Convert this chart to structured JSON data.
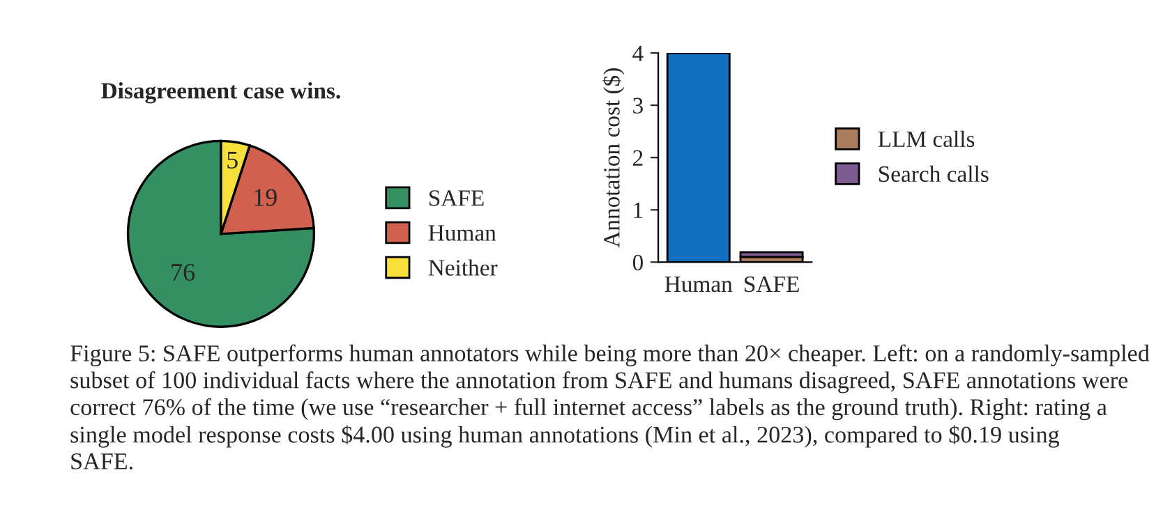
{
  "chart_data": [
    {
      "type": "pie",
      "title": "Disagreement case wins.",
      "categories": [
        "SAFE",
        "Human",
        "Neither"
      ],
      "values": [
        76,
        19,
        5
      ],
      "colors": [
        "#348f62",
        "#d1604e",
        "#f7e03c"
      ],
      "data_labels": true,
      "legend": "right"
    },
    {
      "type": "bar",
      "ylabel": "Annotation cost ($)",
      "categories": [
        "Human",
        "SAFE"
      ],
      "stacked": true,
      "ylim": [
        0,
        4
      ],
      "yticks": [
        0,
        1,
        2,
        3,
        4
      ],
      "legend": "right",
      "series": [
        {
          "color": "#1170c0",
          "values": [
            4,
            null
          ]
        },
        {
          "name": "LLM calls",
          "color": "#a97c5e",
          "values": [
            null,
            0.1
          ]
        },
        {
          "name": "Search calls",
          "color": "#7e5b91",
          "values": [
            null,
            0.09
          ]
        }
      ],
      "annotations": [
        "Figure 5: SAFE outperforms human annotators while being more than 20× cheaper. Left: on a randomly-sampled subset of 100 individual facts where the annotation from SAFE and humans disagreed, SAFE annotations were correct 76% of the time (we use “researcher + full internet access” labels as the ground truth). Right: rating a single model response costs $4.00 using human annotations (Min et al., 2023), compared to $0.19 using SAFE."
      ]
    }
  ]
}
